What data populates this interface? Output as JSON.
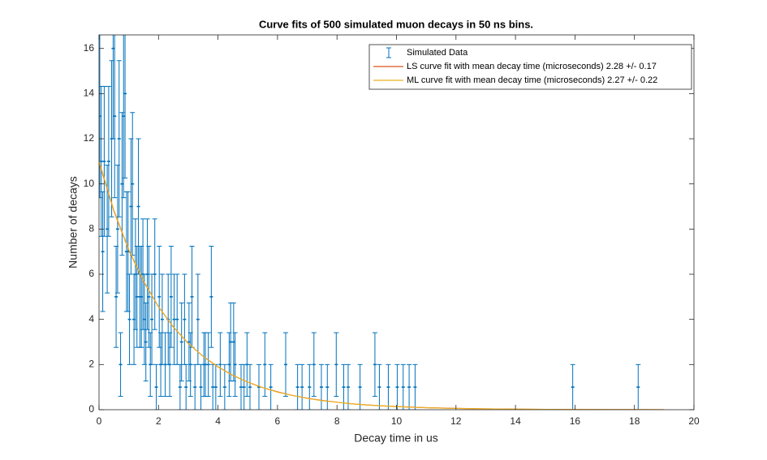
{
  "chart_data": {
    "type": "errorbar",
    "title": "Curve fits of 500 simulated muon decays in 50 ns bins.",
    "x_label": "Decay time in us",
    "y_label": "Number of decays",
    "xlim": [
      0,
      20
    ],
    "xticks": [
      0,
      2,
      4,
      6,
      8,
      10,
      12,
      14,
      16,
      18,
      20
    ],
    "ylim": [
      0,
      16.6
    ],
    "yticks": [
      0,
      2,
      4,
      6,
      8,
      10,
      12,
      14,
      16
    ],
    "legend": "upper right",
    "series": [
      {
        "name": "Simulated Data",
        "kind": "errorbar",
        "color": "#0072bd",
        "x": [
          0.025,
          0.075,
          0.125,
          0.175,
          0.275,
          0.325,
          0.425,
          0.475,
          0.525,
          0.575,
          0.625,
          0.675,
          0.725,
          0.775,
          0.825,
          0.875,
          0.925,
          0.975,
          1.025,
          1.075,
          1.125,
          1.175,
          1.225,
          1.275,
          1.325,
          1.375,
          1.425,
          1.475,
          1.525,
          1.575,
          1.625,
          1.675,
          1.725,
          1.775,
          1.875,
          1.925,
          2.025,
          2.075,
          2.125,
          2.225,
          2.325,
          2.375,
          2.425,
          2.525,
          2.625,
          2.725,
          2.775,
          2.875,
          2.925,
          3.025,
          3.075,
          3.125,
          3.225,
          3.325,
          3.425,
          3.525,
          3.575,
          3.675,
          3.775,
          3.825,
          3.925,
          4.075,
          4.225,
          4.375,
          4.425,
          4.525,
          4.575,
          4.775,
          4.875,
          4.975,
          5.075,
          5.375,
          5.575,
          5.775,
          6.275,
          6.675,
          6.825,
          7.075,
          7.225,
          7.475,
          7.675,
          7.975,
          8.225,
          8.375,
          8.775,
          9.275,
          9.425,
          9.725,
          10.025,
          10.225,
          10.425,
          10.625,
          15.925,
          18.125
        ],
        "values": [
          13,
          11,
          7,
          11,
          8,
          11,
          12,
          16,
          13,
          5,
          8,
          12,
          2,
          10,
          13,
          14,
          7,
          7,
          4,
          9,
          10,
          4,
          6,
          5,
          9,
          5,
          5,
          6,
          4,
          3,
          6,
          5,
          2,
          4,
          6,
          1,
          5,
          2,
          4,
          2,
          4,
          2,
          5,
          4,
          4,
          1,
          3,
          4,
          1,
          3,
          2,
          5,
          1,
          4,
          1,
          2,
          2,
          2,
          5,
          1,
          1,
          2,
          1,
          2,
          3,
          3,
          2,
          1,
          1,
          2,
          1,
          1,
          2,
          1,
          2,
          1,
          1,
          1,
          2,
          1,
          1,
          2,
          1,
          1,
          1,
          2,
          1,
          1,
          1,
          1,
          1,
          1,
          1,
          1
        ],
        "errors": [
          3.61,
          3.32,
          2.65,
          3.32,
          2.83,
          3.32,
          3.46,
          4,
          3.61,
          2.24,
          2.83,
          3.46,
          1.41,
          3.16,
          3.61,
          3.74,
          2.65,
          2.65,
          2,
          3,
          3.16,
          2,
          2.45,
          2.24,
          3,
          2.24,
          2.24,
          2.45,
          2,
          1.73,
          2.45,
          2.24,
          1.41,
          2,
          2.45,
          1,
          2.24,
          1.41,
          2,
          1.41,
          2,
          1.41,
          2.24,
          2,
          2,
          1,
          1.73,
          2,
          1,
          1.73,
          1.41,
          2.24,
          1,
          2,
          1,
          1.41,
          1.41,
          1.41,
          2.24,
          1,
          1,
          1.41,
          1,
          1.41,
          1.73,
          1.73,
          1.41,
          1,
          1,
          1.41,
          1,
          1,
          1.41,
          1,
          1.41,
          1,
          1,
          1,
          1.41,
          1,
          1,
          1.41,
          1,
          1,
          1,
          1.41,
          1,
          1,
          1,
          1,
          1,
          1,
          1,
          1
        ]
      },
      {
        "name": "LS curve fit with mean decay time (microseconds) 2.28 +/- 0.17",
        "kind": "line",
        "color": "#d95319",
        "x": [
          0,
          0.5,
          1,
          1.5,
          2,
          2.5,
          3,
          3.5,
          4,
          4.5,
          5,
          5.5,
          6,
          6.5,
          7,
          7.5,
          8,
          8.5,
          9,
          9.5,
          10,
          11,
          12,
          13,
          14,
          15,
          16,
          17,
          18,
          19
        ],
        "values": [
          10.96,
          8.8,
          7.07,
          5.68,
          4.56,
          3.66,
          2.94,
          2.36,
          1.9,
          1.52,
          1.22,
          0.98,
          0.79,
          0.63,
          0.51,
          0.41,
          0.33,
          0.26,
          0.21,
          0.17,
          0.14,
          0.09,
          0.057,
          0.037,
          0.024,
          0.015,
          0.01,
          0.0064,
          0.0041,
          0.0026
        ]
      },
      {
        "name": "ML curve fit with mean decay time (microseconds) 2.27 +/- 0.22",
        "kind": "line",
        "color": "#edb120",
        "x": [
          0,
          0.5,
          1,
          1.5,
          2,
          2.5,
          3,
          3.5,
          4,
          4.5,
          5,
          5.5,
          6,
          6.5,
          7,
          7.5,
          8,
          8.5,
          9,
          9.5,
          10,
          11,
          12,
          13,
          14,
          15,
          16,
          17,
          18,
          19
        ],
        "values": [
          11.01,
          8.83,
          7.09,
          5.69,
          4.56,
          3.66,
          2.94,
          2.36,
          1.89,
          1.52,
          1.22,
          0.98,
          0.78,
          0.63,
          0.5,
          0.4,
          0.33,
          0.26,
          0.21,
          0.17,
          0.135,
          0.087,
          0.056,
          0.036,
          0.023,
          0.015,
          0.0096,
          0.0062,
          0.004,
          0.0026
        ]
      }
    ]
  }
}
